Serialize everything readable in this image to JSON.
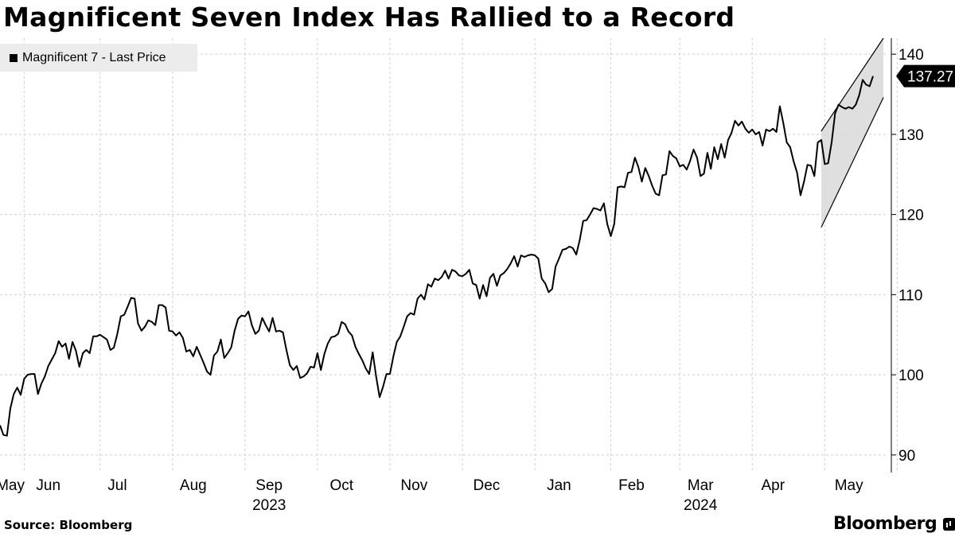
{
  "header": {
    "title": "Magnificent Seven Index Has Rallied to a Record"
  },
  "footer": {
    "source": "Source: Bloomberg",
    "brand": "Bloomberg"
  },
  "chart_data": {
    "type": "line",
    "title": "Magnificent Seven Index Has Rallied to a Record",
    "series": [
      {
        "name": "Magnificent 7 - Last Price",
        "color": "#000000",
        "last_value_label": "137.27",
        "values": [
          93.7,
          92.5,
          92.4,
          95.8,
          97.6,
          98.4,
          97.5,
          99.5,
          100.0,
          100.1,
          100.1,
          97.6,
          98.9,
          99.8,
          101.1,
          101.9,
          102.7,
          104.2,
          103.5,
          103.9,
          102.0,
          104.1,
          103.0,
          101.0,
          102.7,
          103.1,
          102.7,
          104.8,
          104.8,
          105.0,
          104.7,
          104.4,
          103.1,
          103.4,
          105.1,
          107.3,
          107.5,
          108.5,
          109.6,
          109.5,
          106.4,
          105.5,
          106.0,
          106.8,
          106.6,
          106.2,
          108.7,
          108.7,
          108.4,
          105.5,
          105.4,
          104.9,
          105.3,
          104.6,
          102.9,
          103.1,
          102.3,
          103.5,
          102.5,
          101.5,
          100.4,
          100.0,
          102.4,
          102.9,
          104.4,
          102.1,
          102.7,
          103.4,
          105.5,
          107.0,
          107.4,
          107.3,
          107.9,
          106.2,
          105.1,
          105.5,
          107.1,
          106.2,
          105.4,
          107.1,
          105.4,
          105.5,
          105.3,
          103.1,
          101.2,
          100.6,
          101.1,
          99.6,
          99.8,
          100.2,
          101.0,
          100.9,
          102.7,
          100.6,
          102.6,
          103.9,
          104.7,
          104.8,
          105.1,
          106.6,
          106.3,
          105.4,
          104.9,
          103.5,
          102.6,
          101.8,
          100.8,
          100.1,
          102.8,
          99.8,
          97.2,
          98.5,
          100.1,
          100.1,
          102.3,
          104.1,
          104.8,
          106.0,
          107.3,
          107.7,
          107.5,
          109.5,
          110.0,
          109.4,
          111.3,
          111.0,
          112.0,
          111.8,
          112.2,
          113.0,
          112.0,
          113.1,
          112.9,
          112.4,
          112.3,
          112.6,
          113.1,
          111.4,
          111.2,
          109.5,
          111.2,
          109.8,
          112.1,
          112.6,
          111.1,
          112.4,
          112.7,
          113.2,
          113.9,
          114.8,
          113.5,
          114.9,
          114.7,
          114.9,
          115.0,
          114.9,
          114.5,
          112.0,
          111.4,
          110.3,
          110.7,
          113.5,
          114.5,
          115.6,
          115.7,
          116.0,
          115.8,
          115.0,
          116.8,
          119.2,
          119.3,
          120.0,
          120.8,
          120.7,
          120.5,
          121.4,
          118.8,
          117.3,
          118.8,
          123.4,
          123.5,
          123.4,
          125.2,
          125.3,
          127.1,
          125.9,
          124.1,
          125.8,
          124.8,
          123.6,
          122.6,
          122.4,
          124.9,
          125.0,
          127.9,
          127.3,
          127.0,
          126.0,
          126.2,
          125.6,
          126.7,
          128.1,
          127.1,
          124.8,
          125.1,
          127.7,
          125.7,
          128.4,
          126.9,
          128.8,
          127.1,
          129.3,
          130.2,
          131.7,
          131.1,
          131.6,
          130.7,
          130.2,
          130.6,
          130.0,
          130.3,
          128.6,
          130.6,
          130.4,
          130.7,
          130.3,
          133.5,
          131.4,
          129.0,
          128.4,
          126.6,
          125.2,
          122.4,
          124.1,
          126.2,
          126.1,
          124.8,
          129.0,
          129.3,
          126.3,
          126.4,
          129.0,
          132.6,
          133.7,
          133.4,
          133.2,
          133.4,
          133.2,
          133.7,
          134.9,
          136.8,
          136.2,
          136.0,
          137.27
        ]
      }
    ],
    "channel": {
      "lower_start": 118.4,
      "lower_end": 134.6,
      "upper_start": 130.4,
      "upper_end": 142.0
    },
    "y_axis": {
      "min": 88,
      "max": 142,
      "ticks": [
        90,
        100,
        110,
        120,
        130,
        140
      ]
    },
    "x_axis": {
      "month_labels": [
        {
          "label": "May",
          "index": 3
        },
        {
          "label": "Jun",
          "index": 14
        },
        {
          "label": "Jul",
          "index": 34
        },
        {
          "label": "Aug",
          "index": 56
        },
        {
          "label": "Sep",
          "index": 78
        },
        {
          "label": "Oct",
          "index": 99
        },
        {
          "label": "Nov",
          "index": 120
        },
        {
          "label": "Dec",
          "index": 141
        },
        {
          "label": "Jan",
          "index": 162
        },
        {
          "label": "Feb",
          "index": 183
        },
        {
          "label": "Mar",
          "index": 203
        },
        {
          "label": "Apr",
          "index": 224
        },
        {
          "label": "May",
          "index": 246
        }
      ],
      "gridline_indices": [
        7,
        29,
        50,
        71,
        92,
        113,
        134,
        155,
        177,
        197,
        218,
        239,
        260
      ],
      "year_labels": [
        {
          "label": "2023",
          "index": 78
        },
        {
          "label": "2024",
          "index": 203
        }
      ]
    },
    "grid": true,
    "legend": {
      "position": "top-left",
      "entries": [
        "Magnificent 7 - Last Price"
      ]
    }
  }
}
